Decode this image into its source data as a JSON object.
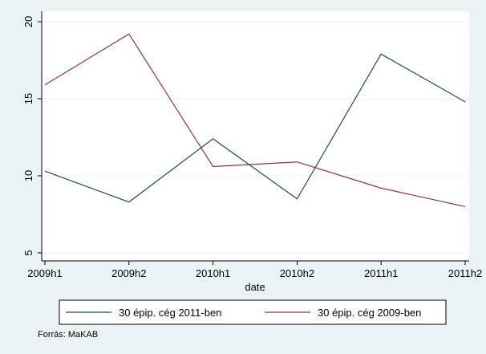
{
  "chart_data": {
    "type": "line",
    "title": "",
    "xlabel": "date",
    "ylabel": "",
    "categories": [
      "2009h1",
      "2009h2",
      "2010h1",
      "2010h2",
      "2011h1",
      "2011h2"
    ],
    "series": [
      {
        "name": "30 épip. cég 2011-ben",
        "color": "#1a476f",
        "values": [
          10.3,
          8.3,
          12.4,
          8.5,
          17.9,
          14.8
        ]
      },
      {
        "name": "30 épip. cég 2009-ben",
        "color": "#90353b",
        "values": [
          15.9,
          19.2,
          10.6,
          10.9,
          9.2,
          8.0
        ]
      }
    ],
    "ylim": [
      5,
      20
    ],
    "yticks": [
      5,
      10,
      15,
      20
    ],
    "grid": true,
    "legend_position": "bottom"
  },
  "note": "Forrás: MaKAB",
  "colors": {
    "background": "#eaf2f3",
    "plot_bg": "#ffffff",
    "grid": "#eaf2f3"
  }
}
